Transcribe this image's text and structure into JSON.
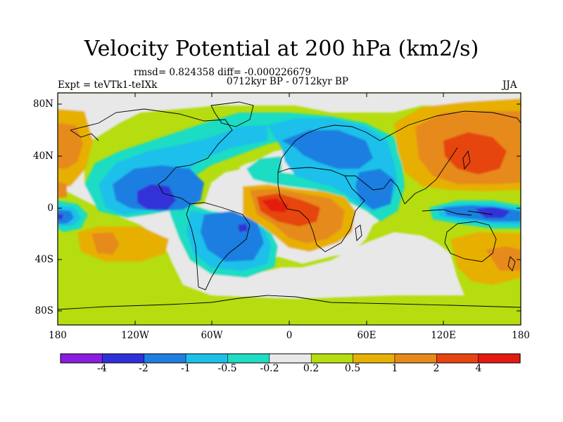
{
  "title": "Velocity Potential at 200 hPa (km2/s)",
  "stats": "rmsd= 0.824358 diff= -0.000226679",
  "period": "0712kyr BP - 0712kyr BP",
  "experiment": "Expt = teVTk1-teIXk",
  "season": "JJA",
  "lat_ticks": [
    "80N",
    "40N",
    "0",
    "40S",
    "80S"
  ],
  "lon_ticks": [
    "180",
    "120W",
    "60W",
    "0",
    "60E",
    "120E",
    "180"
  ],
  "colorbar": {
    "labels": [
      "-4",
      "-2",
      "-1",
      "-0.5",
      "-0.2",
      "0.2",
      "0.5",
      "1",
      "2",
      "4"
    ],
    "colors": [
      "#8a1de0",
      "#3030d8",
      "#1f7ee0",
      "#1ec0ea",
      "#1fdcc3",
      "#e8e8e8",
      "#b5dd10",
      "#e7b005",
      "#e68a1a",
      "#e64410",
      "#e31a10"
    ]
  },
  "chart_data": {
    "type": "contour-map",
    "variable": "Velocity Potential at 200 hPa",
    "units": "km2/s",
    "levels": [
      -4,
      -2,
      -1,
      -0.5,
      -0.2,
      0.2,
      0.5,
      1,
      2,
      4
    ],
    "xlim": [
      -180,
      180
    ],
    "ylim": [
      -90,
      90
    ]
  }
}
